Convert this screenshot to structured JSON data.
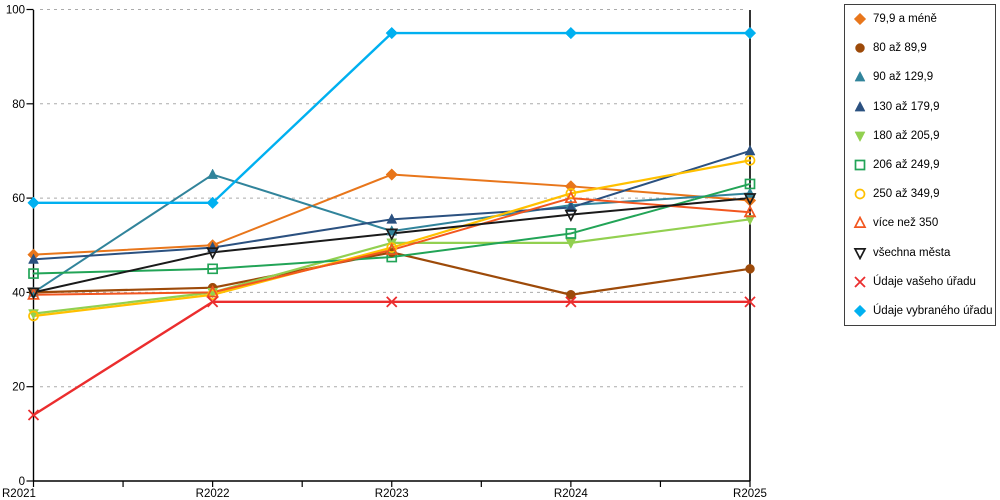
{
  "chart_data": {
    "type": "line",
    "title": "",
    "x_categories": [
      "R2021",
      "R2022",
      "R2023",
      "R2024",
      "R2025"
    ],
    "y_ticks": [
      0,
      20,
      40,
      60,
      80,
      100
    ],
    "ylim": [
      0,
      100
    ],
    "grid": "horizontal-dashed",
    "legend_position": "right-boxed",
    "reference_line_x": "R2025",
    "series": [
      {
        "name": "79,9 a méně",
        "color": "#E8761B",
        "marker": "diamond",
        "marker_fill": "filled",
        "line_width": 2,
        "values": [
          48,
          50,
          65,
          62.5,
          59.5
        ]
      },
      {
        "name": "80 až 89,9",
        "color": "#9D4A09",
        "marker": "circle",
        "marker_fill": "filled",
        "line_width": 2.2,
        "values": [
          40,
          41,
          48.5,
          39.5,
          45
        ]
      },
      {
        "name": "90 až 129,9",
        "color": "#31849B",
        "marker": "triangle-up",
        "marker_fill": "filled",
        "line_width": 2,
        "values": [
          40,
          65,
          53,
          58.5,
          61
        ]
      },
      {
        "name": "130 až 179,9",
        "color": "#2B5180",
        "marker": "triangle-up",
        "marker_fill": "filled",
        "line_width": 2,
        "values": [
          47,
          49.5,
          55.5,
          58,
          70
        ]
      },
      {
        "name": "180 až 205,9",
        "color": "#92D050",
        "marker": "triangle-down",
        "marker_fill": "filled",
        "line_width": 2.2,
        "values": [
          35.5,
          40,
          50.5,
          50.5,
          55.5
        ]
      },
      {
        "name": "206 až 249,9",
        "color": "#22A457",
        "marker": "square",
        "marker_fill": "open",
        "line_width": 2,
        "values": [
          44,
          45,
          47.5,
          52.5,
          63
        ]
      },
      {
        "name": "250 až 349,9",
        "color": "#FFC000",
        "marker": "circle",
        "marker_fill": "open",
        "line_width": 2.2,
        "values": [
          35,
          39.5,
          49.5,
          61,
          68
        ]
      },
      {
        "name": "více než 350",
        "color": "#F2561F",
        "marker": "triangle-up",
        "marker_fill": "open",
        "line_width": 2,
        "values": [
          39.5,
          40,
          49,
          60,
          57
        ]
      },
      {
        "name": "všechna města",
        "color": "#1A1A1A",
        "marker": "triangle-down",
        "marker_fill": "open",
        "line_width": 2,
        "values": [
          40,
          48.5,
          52.5,
          56.5,
          60
        ]
      },
      {
        "name": "Údaje vašeho úřadu",
        "color": "#EB2D2E",
        "marker": "x",
        "marker_fill": "open",
        "line_width": 2.4,
        "values": [
          14,
          38,
          38,
          38,
          38
        ]
      },
      {
        "name": "Údaje vybraného úřadu",
        "color": "#00B0F0",
        "marker": "diamond",
        "marker_fill": "filled",
        "line_width": 2.4,
        "values": [
          59,
          59,
          95,
          95,
          95
        ]
      }
    ]
  },
  "colors": {
    "background": "#FFFFFF",
    "gridline": "#ABABAB",
    "axis": "#000000",
    "reference_line": "#000000",
    "legend_border": "#3F3F3F",
    "tick_label": "#000000"
  }
}
